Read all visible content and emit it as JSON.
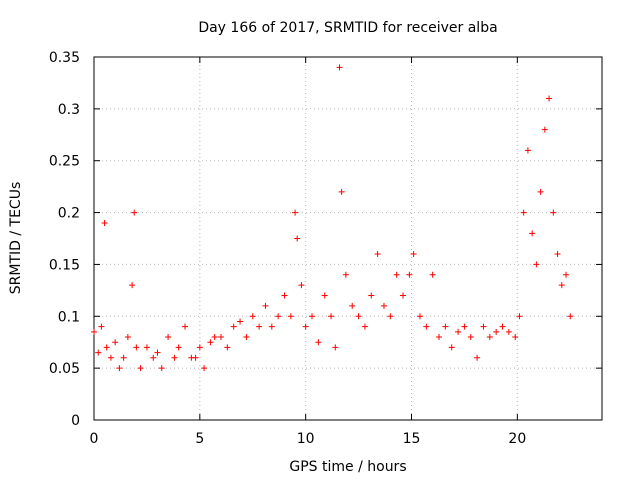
{
  "chart_data": {
    "type": "scatter",
    "title": "Day 166 of 2017, SRMTID for receiver alba",
    "xlabel": "GPS time / hours",
    "ylabel": "SRMTID / TECUs",
    "xlim": [
      0,
      24
    ],
    "ylim": [
      0,
      0.35
    ],
    "xticks": [
      0,
      5,
      10,
      15,
      20
    ],
    "xtick_labels": [
      "0",
      "5",
      "10",
      "15",
      "20"
    ],
    "yticks": [
      0,
      0.05,
      0.1,
      0.15,
      0.2,
      0.25,
      0.3,
      0.35
    ],
    "ytick_labels": [
      "0",
      "0.05",
      "0.1",
      "0.15",
      "0.2",
      "0.25",
      "0.3",
      "0.35"
    ],
    "grid": true,
    "marker": "plus",
    "series": [
      {
        "name": "SRMTID",
        "color": "#ff0000",
        "x": [
          0.0,
          0.2,
          0.35,
          0.5,
          0.6,
          0.8,
          1.0,
          1.2,
          1.4,
          1.6,
          1.8,
          1.9,
          2.0,
          2.2,
          2.5,
          2.8,
          3.0,
          3.2,
          3.5,
          3.8,
          4.0,
          4.3,
          4.6,
          4.8,
          5.0,
          5.2,
          5.5,
          5.7,
          6.0,
          6.3,
          6.6,
          6.9,
          7.2,
          7.5,
          7.8,
          8.1,
          8.4,
          8.7,
          9.0,
          9.3,
          9.5,
          9.6,
          9.8,
          10.0,
          10.3,
          10.6,
          10.9,
          11.2,
          11.4,
          11.6,
          11.7,
          11.9,
          12.2,
          12.5,
          12.8,
          13.1,
          13.4,
          13.7,
          14.0,
          14.3,
          14.6,
          14.9,
          15.1,
          15.4,
          15.7,
          16.0,
          16.3,
          16.6,
          16.9,
          17.2,
          17.5,
          17.8,
          18.1,
          18.4,
          18.7,
          19.0,
          19.3,
          19.6,
          19.9,
          20.1,
          20.3,
          20.5,
          20.7,
          20.9,
          21.1,
          21.3,
          21.5,
          21.7,
          21.9,
          22.1,
          22.3,
          22.5
        ],
        "y": [
          0.085,
          0.065,
          0.09,
          0.19,
          0.07,
          0.06,
          0.075,
          0.05,
          0.06,
          0.08,
          0.13,
          0.2,
          0.07,
          0.05,
          0.07,
          0.06,
          0.065,
          0.05,
          0.08,
          0.06,
          0.07,
          0.09,
          0.06,
          0.06,
          0.07,
          0.05,
          0.075,
          0.08,
          0.08,
          0.07,
          0.09,
          0.095,
          0.08,
          0.1,
          0.09,
          0.11,
          0.09,
          0.1,
          0.12,
          0.1,
          0.2,
          0.175,
          0.13,
          0.09,
          0.1,
          0.075,
          0.12,
          0.1,
          0.07,
          0.34,
          0.22,
          0.14,
          0.11,
          0.1,
          0.09,
          0.12,
          0.16,
          0.11,
          0.1,
          0.14,
          0.12,
          0.14,
          0.16,
          0.1,
          0.09,
          0.14,
          0.08,
          0.09,
          0.07,
          0.085,
          0.09,
          0.08,
          0.06,
          0.09,
          0.08,
          0.085,
          0.09,
          0.085,
          0.08,
          0.1,
          0.2,
          0.26,
          0.18,
          0.15,
          0.22,
          0.28,
          0.31,
          0.2,
          0.16,
          0.13,
          0.14,
          0.1
        ]
      }
    ]
  }
}
